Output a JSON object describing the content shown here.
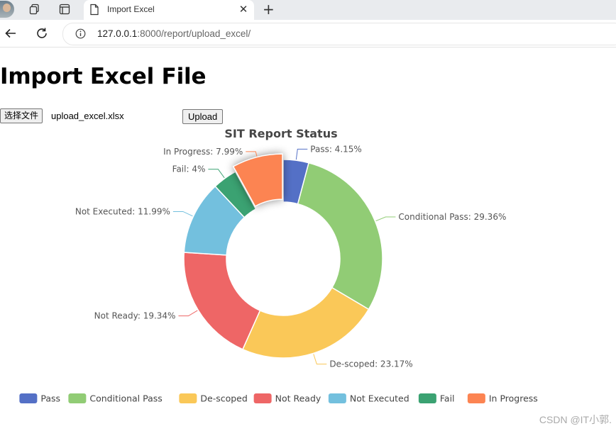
{
  "browser": {
    "tab_title": "Import Excel",
    "tab_close": "✕",
    "new_tab": "+",
    "url_host": "127.0.0.1",
    "url_rest": ":8000/report/upload_excel/"
  },
  "page": {
    "title": "Import Excel File",
    "choose_file_label": "选择文件",
    "selected_file": "upload_excel.xlsx",
    "upload_label": "Upload"
  },
  "chart_data": {
    "type": "pie",
    "donut": true,
    "title": "SIT Report Status",
    "legend_position": "bottom",
    "slices": [
      {
        "name": "Pass",
        "value": 4.15,
        "color": "#5470c6"
      },
      {
        "name": "Conditional Pass",
        "value": 29.36,
        "color": "#91cc75"
      },
      {
        "name": "De-scoped",
        "value": 23.17,
        "color": "#fac858"
      },
      {
        "name": "Not Ready",
        "value": 19.34,
        "color": "#ee6666"
      },
      {
        "name": "Not Executed",
        "value": 11.99,
        "color": "#73c0de"
      },
      {
        "name": "Fail",
        "value": 4,
        "color": "#3ba272"
      },
      {
        "name": "In Progress",
        "value": 7.99,
        "color": "#fc8452"
      }
    ],
    "labels": [
      "Pass: 4.15%",
      "Conditional Pass: 29.36%",
      "De-scoped: 23.17%",
      "Not Ready: 19.34%",
      "Not Executed: 11.99%",
      "Fail: 4%",
      "In Progress: 7.99%"
    ],
    "highlighted_slice": "In Progress"
  },
  "watermark": "CSDN @IT小郭."
}
